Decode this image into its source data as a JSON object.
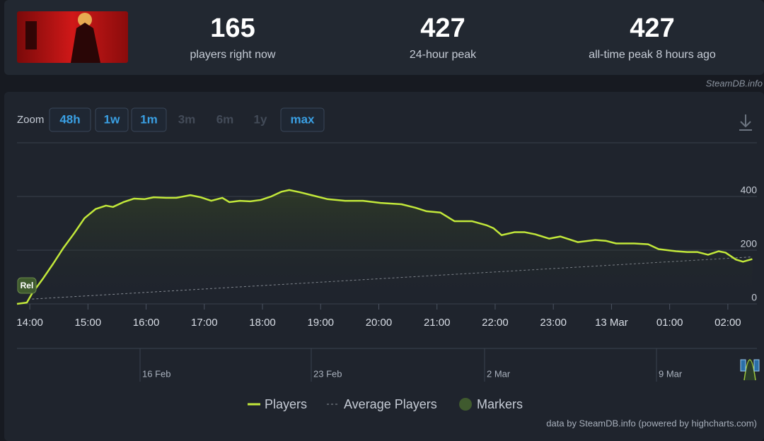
{
  "header": {
    "stats": [
      {
        "value": "165",
        "label": "players right now"
      },
      {
        "value": "427",
        "label": "24-hour peak"
      },
      {
        "value": "427",
        "label": "all-time peak 8 hours ago"
      }
    ],
    "credit": "SteamDB.info"
  },
  "zoom": {
    "label": "Zoom",
    "buttons": [
      {
        "label": "48h",
        "enabled": true
      },
      {
        "label": "1w",
        "enabled": true
      },
      {
        "label": "1m",
        "enabled": true
      },
      {
        "label": "3m",
        "enabled": false
      },
      {
        "label": "6m",
        "enabled": false
      },
      {
        "label": "1y",
        "enabled": false
      },
      {
        "label": "max",
        "enabled": true
      }
    ]
  },
  "chart_data": {
    "type": "line",
    "x": [
      -0.22,
      -0.05,
      0.04,
      0.22,
      0.4,
      0.58,
      0.76,
      0.94,
      1.13,
      1.31,
      1.43,
      1.61,
      1.79,
      1.97,
      2.13,
      2.34,
      2.52,
      2.76,
      2.94,
      3.12,
      3.31,
      3.43,
      3.61,
      3.79,
      3.97,
      4.15,
      4.33,
      4.46,
      4.64,
      4.88,
      5.12,
      5.42,
      5.73,
      6.03,
      6.39,
      6.63,
      6.82,
      7.06,
      7.3,
      7.6,
      7.85,
      7.97,
      8.11,
      8.33,
      8.51,
      8.69,
      8.93,
      9.12,
      9.42,
      9.72,
      9.9,
      10.08,
      10.39,
      10.63,
      10.81,
      11.11,
      11.3,
      11.48,
      11.66,
      11.84,
      11.96,
      12.14,
      12.26,
      12.42
    ],
    "series": [
      {
        "name": "Players",
        "color": "#c2e83a",
        "values": [
          0,
          5,
          39,
          92,
          149,
          209,
          262,
          319,
          353,
          366,
          361,
          379,
          392,
          390,
          397,
          395,
          395,
          405,
          397,
          384,
          395,
          379,
          384,
          382,
          387,
          400,
          418,
          424,
          416,
          403,
          390,
          384,
          384,
          376,
          371,
          358,
          345,
          340,
          308,
          308,
          293,
          282,
          256,
          267,
          267,
          259,
          243,
          251,
          230,
          238,
          235,
          225,
          225,
          222,
          204,
          196,
          193,
          193,
          183,
          196,
          191,
          165,
          157,
          167
        ]
      },
      {
        "name": "Average Players",
        "color": "#8a8f98",
        "x": [
          0.04,
          12.42
        ],
        "values": [
          18,
          175
        ]
      }
    ],
    "markers": {
      "name": "Markers",
      "color": "#3f5a2e",
      "items": [
        {
          "label": "Rel",
          "x": -0.05
        }
      ]
    },
    "xlim": [
      -0.22,
      12.5
    ],
    "xticks": [
      {
        "value": 0,
        "label": "14:00"
      },
      {
        "value": 1,
        "label": "15:00"
      },
      {
        "value": 2,
        "label": "16:00"
      },
      {
        "value": 3,
        "label": "17:00"
      },
      {
        "value": 4,
        "label": "18:00"
      },
      {
        "value": 5,
        "label": "19:00"
      },
      {
        "value": 6,
        "label": "20:00"
      },
      {
        "value": 7,
        "label": "21:00"
      },
      {
        "value": 8,
        "label": "22:00"
      },
      {
        "value": 9,
        "label": "23:00"
      },
      {
        "value": 10,
        "label": "13 Mar"
      },
      {
        "value": 11,
        "label": "01:00"
      },
      {
        "value": 12,
        "label": "02:00"
      }
    ],
    "ylim": [
      0,
      600
    ],
    "yticks": [
      0,
      200,
      400
    ],
    "grid": true,
    "navigator": {
      "labels": [
        "16 Feb",
        "23 Feb",
        "2 Mar",
        "9 Mar"
      ]
    },
    "credits": "data by SteamDB.info (powered by highcharts.com)"
  }
}
